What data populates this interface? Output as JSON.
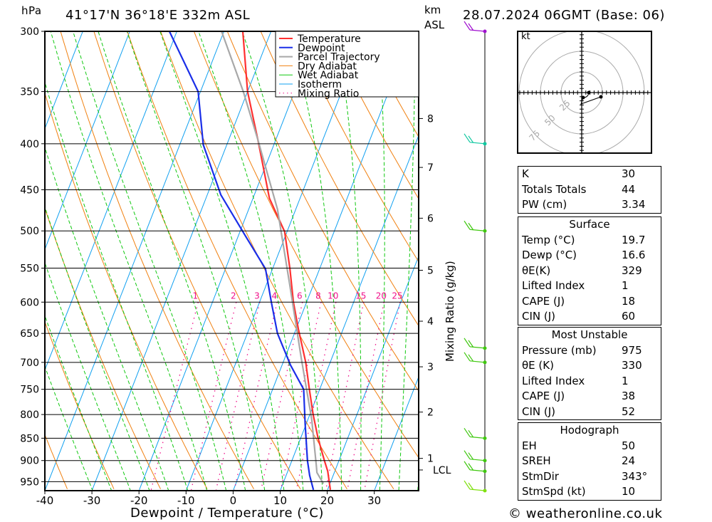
{
  "header": {
    "unit_left": "hPa",
    "location": "41°17'N  36°18'E  332m  ASL",
    "unit_km": "km",
    "unit_asl": "ASL",
    "datetime": "28.07.2024  06GMT  (Base: 06)"
  },
  "footer": "© weatheronline.co.uk",
  "legend": [
    {
      "label": "Temperature",
      "color": "#ff3030"
    },
    {
      "label": "Dewpoint",
      "color": "#1a2ee8"
    },
    {
      "label": "Parcel Trajectory",
      "color": "#a8a8a8"
    },
    {
      "label": "Dry Adiabat",
      "color": "#f08010"
    },
    {
      "label": "Wet Adiabat",
      "color": "#10c810"
    },
    {
      "label": "Isotherm",
      "color": "#10a0f0"
    },
    {
      "label": "Mixing Ratio",
      "color": "#f0108a"
    }
  ],
  "chart_data": {
    "type": "line",
    "title": "Skew-T log-P sounding",
    "xlabel": "Dewpoint / Temperature (°C)",
    "ylabel": "hPa",
    "y2label": "Mixing Ratio (g/kg)",
    "xlim": [
      -40,
      40
    ],
    "ylim": [
      973,
      300
    ],
    "x_ticks": [
      "-40",
      "-30",
      "-20",
      "-10",
      "0",
      "10",
      "20",
      "30"
    ],
    "pressure_levels": [
      "300",
      "350",
      "400",
      "450",
      "500",
      "550",
      "600",
      "650",
      "700",
      "750",
      "800",
      "850",
      "900",
      "950"
    ],
    "km_ticks": [
      {
        "label": "8",
        "p": 375
      },
      {
        "label": "7",
        "p": 425
      },
      {
        "label": "6",
        "p": 484
      },
      {
        "label": "5",
        "p": 553
      },
      {
        "label": "4",
        "p": 630
      },
      {
        "label": "3",
        "p": 708
      },
      {
        "label": "2",
        "p": 795
      },
      {
        "label": "1",
        "p": 895
      },
      {
        "label": "LCL",
        "p": 922
      }
    ],
    "mixing_ratio_labels": [
      "1",
      "2",
      "3",
      "4",
      "6",
      "8",
      "10",
      "15",
      "20",
      "25"
    ],
    "series": [
      {
        "name": "Temperature",
        "points": [
          [
            300,
            -36.0
          ],
          [
            350,
            -30.0
          ],
          [
            396,
            -23.8
          ],
          [
            460,
            -16.5
          ],
          [
            501,
            -10.5
          ],
          [
            551,
            -6.3
          ],
          [
            600,
            -2.8
          ],
          [
            643,
            0.5
          ],
          [
            700,
            4.8
          ],
          [
            750,
            7.8
          ],
          [
            800,
            10.7
          ],
          [
            850,
            13.7
          ],
          [
            900,
            16.9
          ],
          [
            925,
            18.5
          ],
          [
            970,
            20.6
          ]
        ]
      },
      {
        "name": "Dewpoint",
        "points": [
          [
            300,
            -51.6
          ],
          [
            350,
            -40.5
          ],
          [
            401,
            -35.0
          ],
          [
            456,
            -27.1
          ],
          [
            507,
            -18.4
          ],
          [
            551,
            -11.5
          ],
          [
            600,
            -7.5
          ],
          [
            650,
            -3.6
          ],
          [
            705,
            1.8
          ],
          [
            750,
            6.6
          ],
          [
            820,
            9.8
          ],
          [
            900,
            13.3
          ],
          [
            935,
            15.0
          ],
          [
            970,
            17.0
          ]
        ]
      },
      {
        "name": "Parcel Trajectory",
        "points": [
          [
            300,
            -40.5
          ],
          [
            350,
            -30.9
          ],
          [
            396,
            -23.8
          ],
          [
            473,
            -13.9
          ],
          [
            573,
            -5.1
          ],
          [
            694,
            3.6
          ],
          [
            810,
            10.8
          ],
          [
            914,
            15.7
          ],
          [
            928,
            16.3
          ],
          [
            955,
            18.6
          ]
        ]
      }
    ]
  },
  "winds": [
    {
      "p": 300,
      "color": "#a010d0"
    },
    {
      "p": 400,
      "color": "#10c8a0"
    },
    {
      "p": 500,
      "color": "#40c810"
    },
    {
      "p": 675,
      "color": "#40c810"
    },
    {
      "p": 700,
      "color": "#40c810"
    },
    {
      "p": 850,
      "color": "#40c810"
    },
    {
      "p": 900,
      "color": "#40c810"
    },
    {
      "p": 925,
      "color": "#40c810"
    },
    {
      "p": 970,
      "color": "#80e010"
    }
  ],
  "hodograph": {
    "unit": "kt",
    "rings": [
      "25",
      "50",
      "75"
    ]
  },
  "indices": [
    {
      "k": "K",
      "v": "30"
    },
    {
      "k": "Totals Totals",
      "v": "44"
    },
    {
      "k": "PW (cm)",
      "v": "3.34"
    }
  ],
  "surface": {
    "title": "Surface",
    "rows": [
      {
        "k": "Temp (°C)",
        "v": "19.7"
      },
      {
        "k": "Dewp (°C)",
        "v": "16.6"
      },
      {
        "k": "θE(K)",
        "v": "329"
      },
      {
        "k": "Lifted Index",
        "v": "1"
      },
      {
        "k": "CAPE (J)",
        "v": "18"
      },
      {
        "k": "CIN (J)",
        "v": "60"
      }
    ]
  },
  "most_unstable": {
    "title": "Most Unstable",
    "rows": [
      {
        "k": "Pressure (mb)",
        "v": "975"
      },
      {
        "k": "θE (K)",
        "v": "330"
      },
      {
        "k": "Lifted Index",
        "v": "1"
      },
      {
        "k": "CAPE (J)",
        "v": "38"
      },
      {
        "k": "CIN (J)",
        "v": "52"
      }
    ]
  },
  "hodo_table": {
    "title": "Hodograph",
    "rows": [
      {
        "k": "EH",
        "v": "50"
      },
      {
        "k": "SREH",
        "v": "24"
      },
      {
        "k": "StmDir",
        "v": "343°"
      },
      {
        "k": "StmSpd (kt)",
        "v": "10"
      }
    ]
  }
}
